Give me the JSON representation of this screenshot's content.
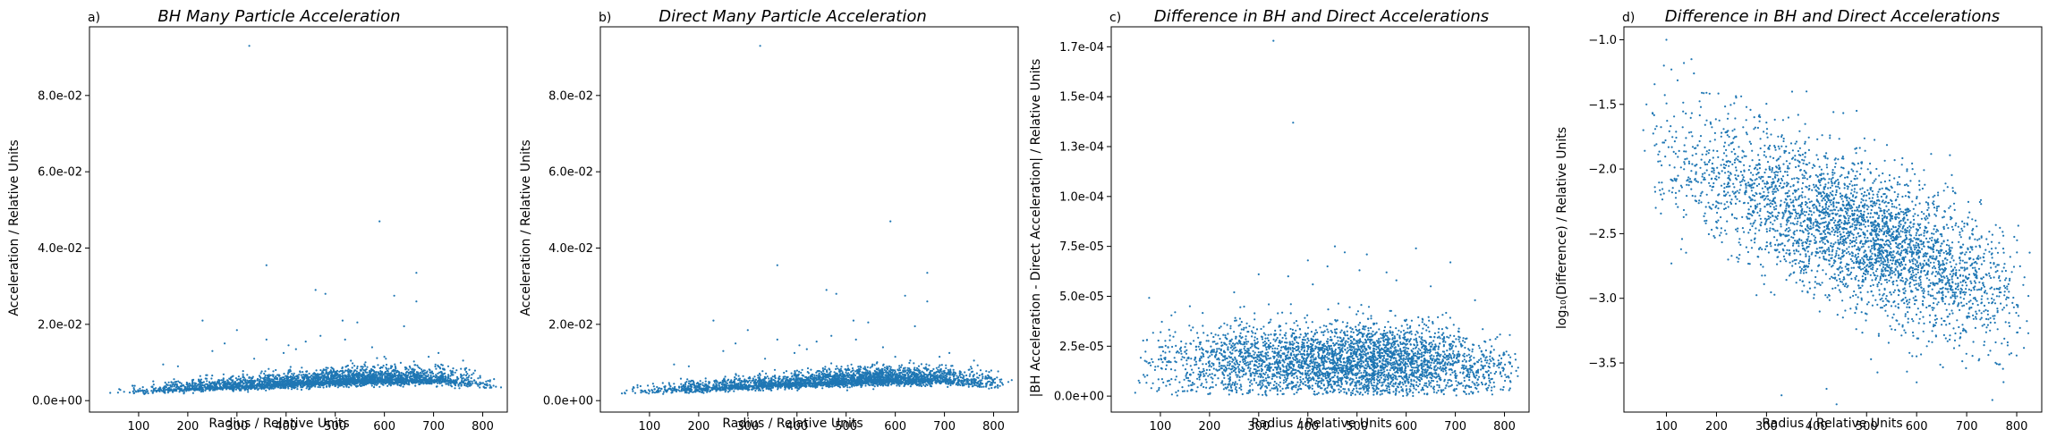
{
  "chart_data": [
    {
      "type": "scatter",
      "panel_label": "a)",
      "title": "BH Many Particle Acceleration",
      "xlabel": "Radius / Relative Units",
      "ylabel": "Acceleration / Relative Units",
      "xlim": [
        0,
        850
      ],
      "ylim": [
        -0.003,
        0.098
      ],
      "xticks": [
        100,
        200,
        300,
        400,
        500,
        600,
        700,
        800
      ],
      "yticks": [
        0.0,
        0.02,
        0.04,
        0.06,
        0.08
      ],
      "ytick_labels": [
        "0.0e+00",
        "2.0e-02",
        "4.0e-02",
        "6.0e-02",
        "8.0e-02"
      ],
      "color": "#1f77b4",
      "grid": false,
      "model": {
        "kind": "acceleration",
        "n": 3200,
        "r_min": 40,
        "r_max": 840,
        "r_mode": 560,
        "peak": 0.0055,
        "spread": 0.0017
      },
      "outliers": [
        [
          325,
          0.093
        ],
        [
          590,
          0.047
        ],
        [
          360,
          0.0355
        ],
        [
          665,
          0.0335
        ],
        [
          665,
          0.026
        ],
        [
          460,
          0.029
        ],
        [
          480,
          0.028
        ],
        [
          620,
          0.0275
        ],
        [
          230,
          0.021
        ],
        [
          545,
          0.0205
        ],
        [
          515,
          0.021
        ],
        [
          640,
          0.0195
        ],
        [
          300,
          0.0185
        ],
        [
          470,
          0.017
        ],
        [
          360,
          0.016
        ],
        [
          405,
          0.0145
        ],
        [
          250,
          0.013
        ],
        [
          575,
          0.014
        ],
        [
          440,
          0.0155
        ],
        [
          520,
          0.016
        ],
        [
          710,
          0.0125
        ],
        [
          275,
          0.015
        ],
        [
          335,
          0.011
        ],
        [
          395,
          0.0125
        ],
        [
          600,
          0.0115
        ],
        [
          150,
          0.0095
        ],
        [
          180,
          0.009
        ],
        [
          420,
          0.0135
        ],
        [
          690,
          0.0115
        ],
        [
          760,
          0.0105
        ]
      ]
    },
    {
      "type": "scatter",
      "panel_label": "b)",
      "title": "Direct Many Particle Acceleration",
      "xlabel": "Radius / Relative Units",
      "ylabel": "Acceleration / Relative Units",
      "xlim": [
        0,
        850
      ],
      "ylim": [
        -0.003,
        0.098
      ],
      "xticks": [
        100,
        200,
        300,
        400,
        500,
        600,
        700,
        800
      ],
      "yticks": [
        0.0,
        0.02,
        0.04,
        0.06,
        0.08
      ],
      "ytick_labels": [
        "0.0e+00",
        "2.0e-02",
        "4.0e-02",
        "6.0e-02",
        "8.0e-02"
      ],
      "color": "#1f77b4",
      "grid": false,
      "model": {
        "kind": "acceleration",
        "n": 3200,
        "r_min": 40,
        "r_max": 840,
        "r_mode": 560,
        "peak": 0.0055,
        "spread": 0.0017
      },
      "outliers": [
        [
          325,
          0.093
        ],
        [
          590,
          0.047
        ],
        [
          360,
          0.0355
        ],
        [
          665,
          0.0335
        ],
        [
          665,
          0.026
        ],
        [
          460,
          0.029
        ],
        [
          480,
          0.028
        ],
        [
          620,
          0.0275
        ],
        [
          230,
          0.021
        ],
        [
          545,
          0.0205
        ],
        [
          515,
          0.021
        ],
        [
          640,
          0.0195
        ],
        [
          300,
          0.0185
        ],
        [
          470,
          0.017
        ],
        [
          360,
          0.016
        ],
        [
          405,
          0.0145
        ],
        [
          250,
          0.013
        ],
        [
          575,
          0.014
        ],
        [
          440,
          0.0155
        ],
        [
          520,
          0.016
        ],
        [
          710,
          0.0125
        ],
        [
          275,
          0.015
        ],
        [
          335,
          0.011
        ],
        [
          395,
          0.0125
        ],
        [
          600,
          0.0115
        ],
        [
          150,
          0.0095
        ],
        [
          180,
          0.009
        ],
        [
          420,
          0.0135
        ],
        [
          690,
          0.0115
        ],
        [
          760,
          0.0105
        ]
      ]
    },
    {
      "type": "scatter",
      "panel_label": "c)",
      "title": "Difference in BH and Direct Accelerations",
      "xlabel": "Radius / Relative Units",
      "ylabel": "|BH Acceleration - Direct Acceleration| / Relative Units",
      "xlim": [
        0,
        850
      ],
      "ylim": [
        -8e-06,
        0.000185
      ],
      "xticks": [
        100,
        200,
        300,
        400,
        500,
        600,
        700,
        800
      ],
      "yticks": [
        0.0,
        2.5e-05,
        5e-05,
        7.5e-05,
        0.0001,
        0.000125,
        0.00015,
        0.000175
      ],
      "ytick_labels": [
        "0.0e+00",
        "2.5e-05",
        "5.0e-05",
        "7.5e-05",
        "1.0e-04",
        "1.3e-04",
        "1.5e-04",
        "1.7e-04"
      ],
      "color": "#1f77b4",
      "grid": false,
      "model": {
        "kind": "difference",
        "n": 3600,
        "r_min": 40,
        "r_max": 840,
        "r_mode": 520,
        "center": 1.7e-05,
        "spread": 1.1e-05
      },
      "outliers": [
        [
          330,
          0.000178
        ],
        [
          370,
          0.000137
        ],
        [
          455,
          7.5e-05
        ],
        [
          620,
          7.4e-05
        ],
        [
          475,
          7.2e-05
        ],
        [
          520,
          7.1e-05
        ],
        [
          400,
          6.8e-05
        ],
        [
          690,
          6.7e-05
        ],
        [
          440,
          6.5e-05
        ],
        [
          300,
          6.1e-05
        ],
        [
          360,
          6e-05
        ],
        [
          580,
          5.8e-05
        ],
        [
          250,
          5.2e-05
        ],
        [
          410,
          5.6e-05
        ],
        [
          650,
          5.5e-05
        ],
        [
          160,
          4.5e-05
        ],
        [
          130,
          4.2e-05
        ],
        [
          740,
          4.8e-05
        ],
        [
          505,
          6.3e-05
        ],
        [
          560,
          6.2e-05
        ]
      ]
    },
    {
      "type": "scatter",
      "panel_label": "d)",
      "title": "Difference in BH and Direct Accelerations",
      "xlabel": "Radius / Relative Units",
      "ylabel": "log₁₀(Difference) / Relative Units",
      "xlim": [
        15,
        850
      ],
      "ylim": [
        -3.88,
        -0.9
      ],
      "xticks": [
        100,
        200,
        300,
        400,
        500,
        600,
        700,
        800
      ],
      "yticks": [
        -3.5,
        -3.0,
        -2.5,
        -2.0,
        -1.5,
        -1.0
      ],
      "ytick_labels": [
        "−3.5",
        "−3.0",
        "−2.5",
        "−2.0",
        "−1.5",
        "−1.0"
      ],
      "color": "#1f77b4",
      "grid": false,
      "model": {
        "kind": "log",
        "n": 3600,
        "r_min": 45,
        "r_max": 840,
        "r_mode": 520,
        "a": -1.75,
        "b": -0.00155,
        "spread": 0.28
      },
      "outliers": [
        [
          100,
          -1.0
        ],
        [
          150,
          -1.15
        ],
        [
          135,
          -1.18
        ],
        [
          95,
          -1.2
        ],
        [
          110,
          -1.23
        ],
        [
          155,
          -1.26
        ],
        [
          380,
          -1.4
        ],
        [
          260,
          -1.52
        ],
        [
          480,
          -1.55
        ],
        [
          60,
          -1.5
        ],
        [
          210,
          -1.72
        ],
        [
          330,
          -3.75
        ],
        [
          440,
          -3.82
        ],
        [
          420,
          -3.7
        ],
        [
          600,
          -3.65
        ],
        [
          110,
          -2.73
        ],
        [
          180,
          -2.4
        ],
        [
          770,
          -3.35
        ],
        [
          800,
          -3.05
        ],
        [
          720,
          -3.12
        ]
      ]
    }
  ]
}
